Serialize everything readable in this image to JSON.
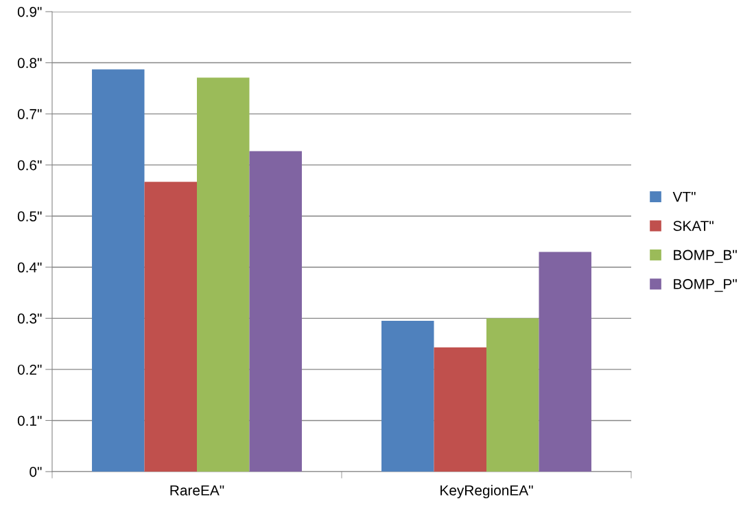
{
  "chart_data": {
    "type": "bar",
    "categories": [
      "RareEA\"",
      "KeyRegionEA\""
    ],
    "series": [
      {
        "name": "VT\"",
        "color": "#4f81bd",
        "values": [
          0.787,
          0.295
        ]
      },
      {
        "name": "SKAT\"",
        "color": "#c0504d",
        "values": [
          0.567,
          0.243
        ]
      },
      {
        "name": "BOMP_B\"",
        "color": "#9bbb59",
        "values": [
          0.771,
          0.3
        ]
      },
      {
        "name": "BOMP_P\"",
        "color": "#8064a2",
        "values": [
          0.627,
          0.43
        ]
      }
    ],
    "ylim": [
      0,
      0.9
    ],
    "yticks": [
      {
        "value": 0,
        "label": "0\""
      },
      {
        "value": 0.1,
        "label": "0.1\""
      },
      {
        "value": 0.2,
        "label": "0.2\""
      },
      {
        "value": 0.3,
        "label": "0.3\""
      },
      {
        "value": 0.4,
        "label": "0.4\""
      },
      {
        "value": 0.5,
        "label": "0.5\""
      },
      {
        "value": 0.6,
        "label": "0.6\""
      },
      {
        "value": 0.7,
        "label": "0.7\""
      },
      {
        "value": 0.8,
        "label": "0.8\""
      },
      {
        "value": 0.9,
        "label": "0.9\""
      }
    ],
    "grid": "y",
    "legend": "right"
  }
}
